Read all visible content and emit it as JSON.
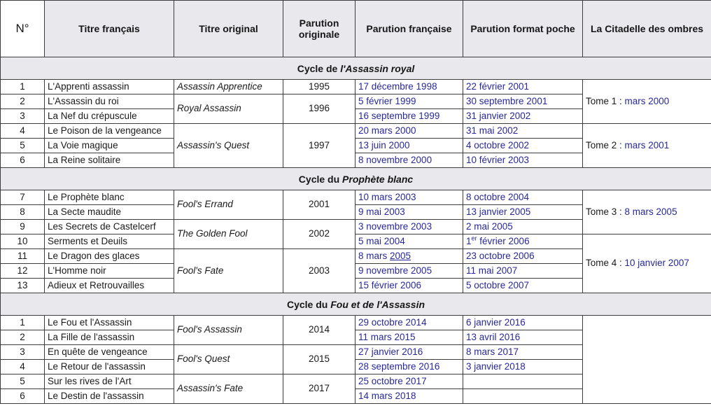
{
  "colors": {
    "link": "#28289a",
    "header_bg": "#e9e9ed",
    "merged_cell_bg": "#f9f9fb",
    "border": "#3d3d3d"
  },
  "table": {
    "columns": [
      {
        "id": "numero",
        "label": "N°"
      },
      {
        "id": "titre-francais",
        "label": "Titre français"
      },
      {
        "id": "titre-original",
        "label": "Titre original"
      },
      {
        "id": "parution-originale",
        "label": "Parution originale"
      },
      {
        "id": "parution-francaise",
        "label": "Parution française"
      },
      {
        "id": "parution-poche",
        "label": "Parution format poche"
      },
      {
        "id": "citadelle",
        "label": "La Citadelle des ombres"
      }
    ],
    "sections": [
      {
        "id": "assassin-royal",
        "title_prefix": "Cycle de ",
        "title_italic": "l'Assassin royal",
        "rows": [
          {
            "num": "1",
            "titre_fr": "L'Apprenti assassin",
            "orig": {
              "text": "Assassin Apprentice",
              "rowspan": 1
            },
            "year": {
              "text": "1995",
              "rowspan": 1
            },
            "fr": "17 décembre 1998",
            "poche": "22 février 2001",
            "citadelle": {
              "label": "Tome 1 : ",
              "link": "mars 2000",
              "rowspan": 3
            }
          },
          {
            "num": "2",
            "titre_fr": "L'Assassin du roi",
            "orig": {
              "text": "Royal Assassin",
              "rowspan": 2
            },
            "year": {
              "text": "1996",
              "rowspan": 2
            },
            "fr": "5 février 1999",
            "poche": "30 septembre 2001"
          },
          {
            "num": "3",
            "titre_fr": "La Nef du crépuscule",
            "fr": "16 septembre 1999",
            "poche": "31 janvier 2002"
          },
          {
            "num": "4",
            "titre_fr": "Le Poison de la vengeance",
            "orig": {
              "text": "Assassin's Quest",
              "rowspan": 3
            },
            "year": {
              "text": "1997",
              "rowspan": 3
            },
            "fr": "20 mars 2000",
            "poche": "31 mai 2002",
            "citadelle": {
              "label": "Tome 2 : ",
              "link": "mars 2001",
              "rowspan": 3
            }
          },
          {
            "num": "5",
            "titre_fr": "La Voie magique",
            "fr": "13 juin 2000",
            "poche": "4 octobre 2002"
          },
          {
            "num": "6",
            "titre_fr": "La Reine solitaire",
            "fr": "8 novembre 2000",
            "poche": "10 février 2003"
          }
        ]
      },
      {
        "id": "prophete-blanc",
        "title_prefix": "Cycle du ",
        "title_italic": "Prophète blanc",
        "rows": [
          {
            "num": "7",
            "titre_fr": "Le Prophète blanc",
            "orig": {
              "text": "Fool's Errand",
              "rowspan": 2
            },
            "year": {
              "text": "2001",
              "rowspan": 2
            },
            "fr": "10 mars 2003",
            "poche": "8 octobre 2004",
            "citadelle": {
              "label": "Tome 3 : ",
              "link": "8 mars 2005",
              "rowspan": 3
            }
          },
          {
            "num": "8",
            "titre_fr": "La Secte maudite",
            "fr": "9 mai 2003",
            "poche": "13 janvier 2005"
          },
          {
            "num": "9",
            "titre_fr": "Les Secrets de Castelcerf",
            "orig": {
              "text": "The Golden Fool",
              "rowspan": 2
            },
            "year": {
              "text": "2002",
              "rowspan": 2
            },
            "fr": "3 novembre 2003",
            "poche": "2 mai 2005"
          },
          {
            "num": "10",
            "titre_fr": "Serments et Deuils",
            "fr": "5 mai 2004",
            "poche": {
              "pre": "1",
              "sup": "er",
              "post": " février 2006"
            },
            "citadelle": {
              "label": "Tome 4 : ",
              "link": "10 janvier 2007",
              "rowspan": 4
            }
          },
          {
            "num": "11",
            "titre_fr": "Le Dragon des glaces",
            "orig": {
              "text": "Fool's Fate",
              "rowspan": 3
            },
            "year": {
              "text": "2003",
              "rowspan": 3
            },
            "fr": {
              "pre": "8 mars ",
              "underline": "2005"
            },
            "poche": "23 octobre 2006"
          },
          {
            "num": "12",
            "titre_fr": "L'Homme noir",
            "fr": "9 novembre 2005",
            "poche": "11 mai 2007"
          },
          {
            "num": "13",
            "titre_fr": "Adieux et Retrouvailles",
            "fr": "15 février 2006",
            "poche": "5 octobre 2007"
          }
        ]
      },
      {
        "id": "fou-et-assassin",
        "title_prefix": "Cycle du ",
        "title_italic": "Fou et de l'Assassin",
        "rows": [
          {
            "num": "1",
            "titre_fr": "Le Fou et l'Assassin",
            "orig": {
              "text": "Fool's Assassin",
              "rowspan": 2
            },
            "year": {
              "text": "2014",
              "rowspan": 2
            },
            "fr": "29 octobre 2014",
            "poche": "6 janvier 2016",
            "citadelle": {
              "label": "",
              "link": "",
              "rowspan": 6
            }
          },
          {
            "num": "2",
            "titre_fr": "La Fille de l'assassin",
            "fr": "11 mars 2015",
            "poche": "13 avril 2016"
          },
          {
            "num": "3",
            "titre_fr": "En quête de vengeance",
            "orig": {
              "text": "Fool's Quest",
              "rowspan": 2
            },
            "year": {
              "text": "2015",
              "rowspan": 2
            },
            "fr": "27 janvier 2016",
            "poche": "8 mars 2017"
          },
          {
            "num": "4",
            "titre_fr": "Le Retour de l'assassin",
            "fr": "28 septembre 2016",
            "poche": "3 janvier 2018"
          },
          {
            "num": "5",
            "titre_fr": "Sur les rives de l'Art",
            "orig": {
              "text": "Assassin's Fate",
              "rowspan": 2
            },
            "year": {
              "text": "2017",
              "rowspan": 2
            },
            "fr": "25 octobre 2017",
            "poche": ""
          },
          {
            "num": "6",
            "titre_fr": "Le Destin de l'assassin",
            "fr": "14 mars 2018",
            "poche": ""
          }
        ]
      }
    ]
  }
}
